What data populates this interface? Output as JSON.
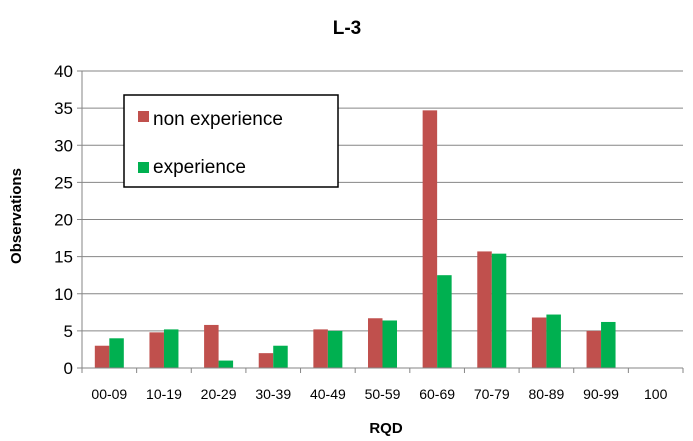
{
  "chart_data": {
    "type": "bar",
    "title": "L-3",
    "xlabel": "RQD",
    "ylabel": "Observations",
    "categories": [
      "00-09",
      "10-19",
      "20-29",
      "30-39",
      "40-49",
      "50-59",
      "60-69",
      "70-79",
      "80-89",
      "90-99",
      "100"
    ],
    "series": [
      {
        "name": "non experience",
        "color": "#c0504d",
        "values": [
          3.0,
          4.8,
          5.8,
          2.0,
          5.2,
          6.7,
          34.7,
          15.7,
          6.8,
          5.0,
          0
        ]
      },
      {
        "name": "experience",
        "color": "#00b050",
        "values": [
          4.0,
          5.2,
          1.0,
          3.0,
          5.0,
          6.4,
          12.5,
          15.4,
          7.2,
          6.2,
          0
        ]
      }
    ],
    "ylim": [
      0,
      40
    ],
    "yticks": [
      0,
      5,
      10,
      15,
      20,
      25,
      30,
      35,
      40
    ],
    "grid": true,
    "legend": "top-left"
  }
}
